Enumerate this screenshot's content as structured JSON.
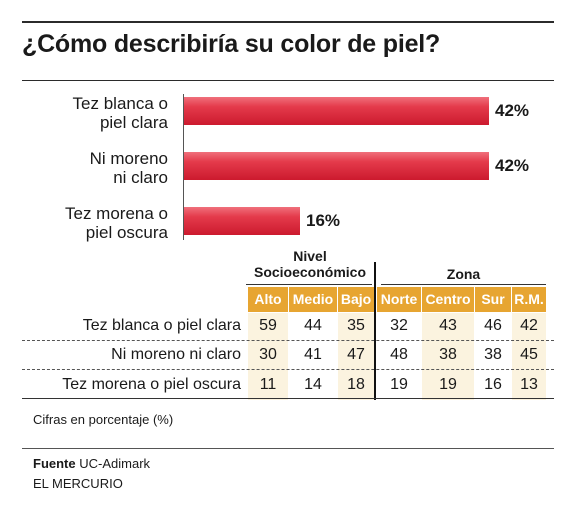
{
  "title": "¿Cómo describiría su color de piel?",
  "chart_data": {
    "type": "bar",
    "orientation": "horizontal",
    "categories": [
      "Tez blanca o piel clara",
      "Ni moreno ni claro",
      "Tez morena o piel oscura"
    ],
    "category_lines": [
      [
        "Tez blanca o",
        "piel clara"
      ],
      [
        "Ni moreno",
        "ni claro"
      ],
      [
        "Tez morena o",
        "piel oscura"
      ]
    ],
    "values": [
      42,
      42,
      16
    ],
    "value_labels": [
      "42%",
      "42%",
      "16%"
    ],
    "xlim": [
      0,
      42
    ],
    "bar_color": "#d9263b"
  },
  "table": {
    "groups": [
      {
        "lines": [
          "Nivel",
          "Socioeconómico"
        ]
      },
      {
        "lines": [
          "Zona"
        ]
      }
    ],
    "columns": [
      "Alto",
      "Medio",
      "Bajo",
      "Norte",
      "Centro",
      "Sur",
      "R.M."
    ],
    "rows": [
      {
        "label": "Tez blanca o piel clara",
        "values": [
          "59",
          "44",
          "35",
          "32",
          "43",
          "46",
          "42"
        ]
      },
      {
        "label": "Ni moreno ni claro",
        "values": [
          "30",
          "41",
          "47",
          "48",
          "38",
          "38",
          "45"
        ]
      },
      {
        "label": "Tez morena o piel oscura",
        "values": [
          "11",
          "14",
          "18",
          "19",
          "19",
          "16",
          "13"
        ]
      }
    ],
    "header_color": "#e7a531",
    "shade_color": "#fbf3df"
  },
  "footnote": "Cifras en porcentaje (%)",
  "source": {
    "label": "Fuente",
    "text": " UC-Adimark"
  },
  "credit": "EL MERCURIO"
}
